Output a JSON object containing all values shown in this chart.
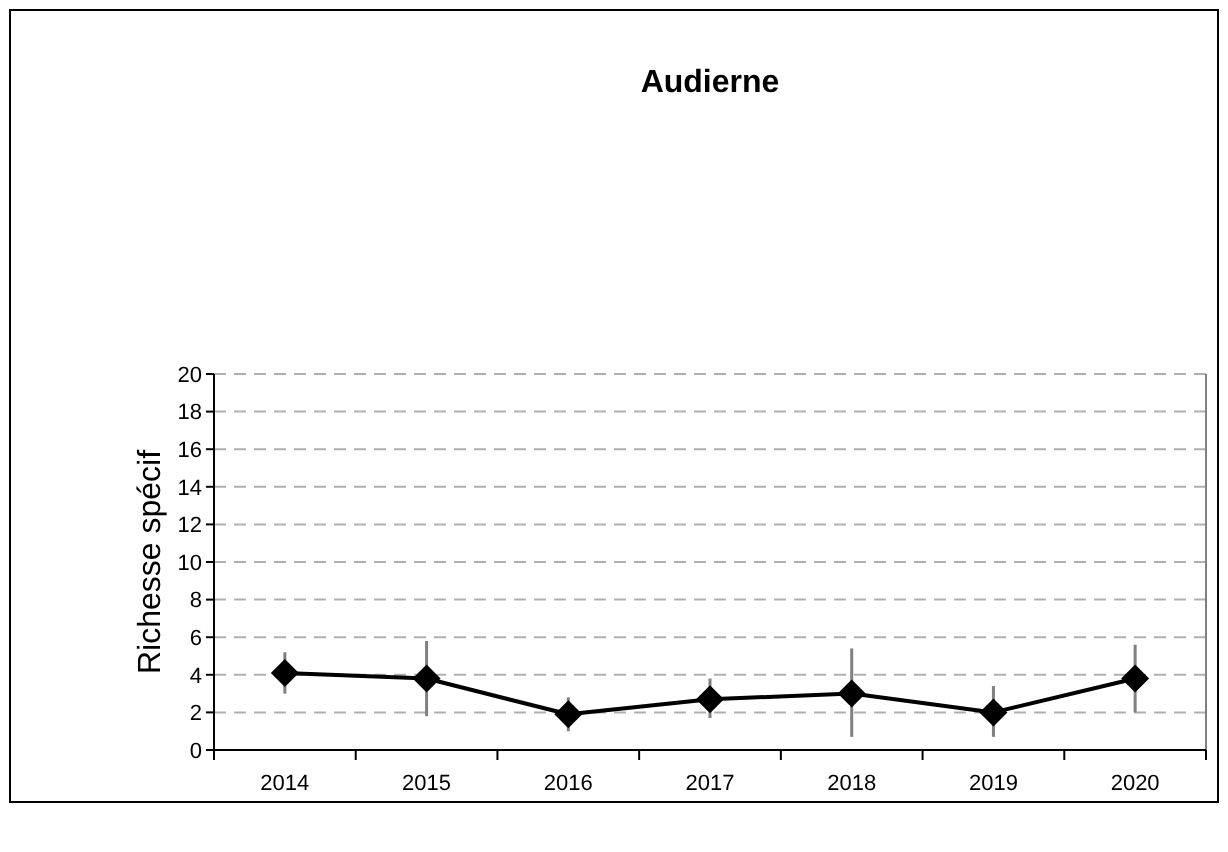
{
  "chart_data": {
    "type": "line",
    "title": "Audierne",
    "ylabel": "Richesse spécif",
    "categories": [
      "2014",
      "2015",
      "2016",
      "2017",
      "2018",
      "2019",
      "2020"
    ],
    "series": [
      {
        "color": "#000000",
        "values": [
          4.1,
          3.8,
          1.9,
          2.7,
          3.0,
          2.0,
          3.8
        ],
        "errors": [
          [
            3.0,
            5.2
          ],
          [
            1.8,
            5.8
          ],
          [
            1.0,
            2.8
          ],
          [
            1.7,
            3.8
          ],
          [
            0.7,
            5.4
          ],
          [
            0.7,
            3.4
          ],
          [
            2.0,
            5.6
          ]
        ]
      }
    ],
    "ylim": [
      0,
      20
    ],
    "yticks": [
      0,
      2,
      4,
      6,
      8,
      10,
      12,
      14,
      16,
      18,
      20
    ],
    "grid": "y",
    "marker": "diamond",
    "line_style": "solid"
  }
}
